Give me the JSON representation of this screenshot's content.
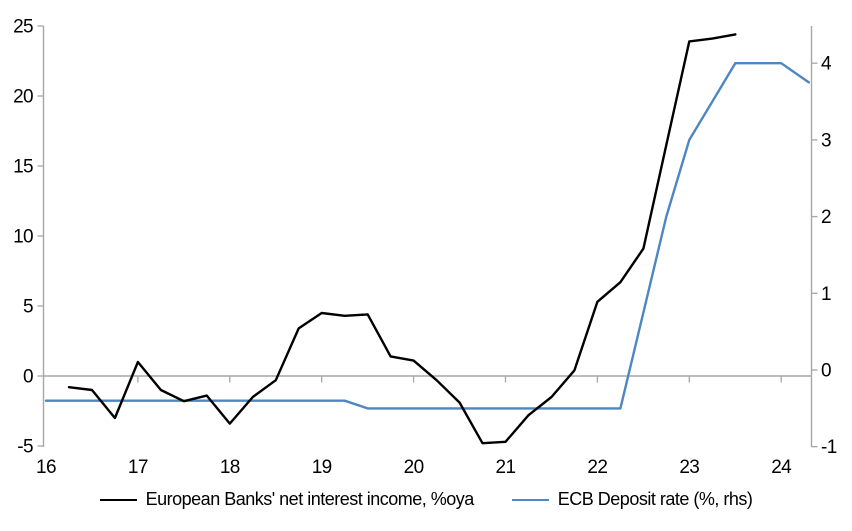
{
  "chart_data": {
    "type": "line",
    "title": "",
    "grid": false,
    "legend_position": "bottom",
    "zero_baseline": true,
    "x_axis": {
      "ticks": [
        16,
        17,
        18,
        19,
        20,
        21,
        22,
        23,
        24
      ],
      "range": [
        16,
        24.33
      ]
    },
    "left_axis": {
      "ticks": [
        25,
        20,
        15,
        10,
        5,
        0,
        -5
      ],
      "range": [
        -5,
        25
      ]
    },
    "right_axis": {
      "ticks": [
        4,
        3,
        2,
        1,
        0,
        -1
      ],
      "range": [
        -1,
        4.45
      ]
    },
    "series": [
      {
        "id": "nii",
        "name": "European Banks' net interest income, %oya",
        "axis": "left",
        "color": "#000000",
        "x": [
          16.25,
          16.5,
          16.75,
          17,
          17.25,
          17.5,
          17.75,
          18,
          18.25,
          18.5,
          18.75,
          19,
          19.25,
          19.5,
          19.75,
          20,
          20.25,
          20.5,
          20.75,
          21,
          21.25,
          21.5,
          21.75,
          22,
          22.25,
          22.5,
          22.75,
          23,
          23.25,
          23.5
        ],
        "values": [
          -0.8,
          -1.0,
          -3.0,
          1.0,
          -1.0,
          -1.8,
          -1.4,
          -3.4,
          -1.5,
          -0.3,
          3.4,
          4.5,
          4.3,
          4.4,
          1.4,
          1.1,
          -0.3,
          -1.9,
          -4.8,
          -4.7,
          -2.8,
          -1.5,
          0.4,
          5.3,
          6.7,
          9.1,
          16.5,
          23.9,
          24.1,
          24.4
        ]
      },
      {
        "id": "ecb-deposit-rate",
        "name": "ECB Deposit rate (%, rhs)",
        "axis": "right",
        "color": "#4e86c0",
        "x": [
          16,
          16.25,
          16.5,
          16.75,
          17,
          17.25,
          17.5,
          17.75,
          18,
          18.25,
          18.5,
          18.75,
          19,
          19.25,
          19.5,
          19.75,
          20,
          20.25,
          20.5,
          20.75,
          21,
          21.25,
          21.5,
          21.75,
          22,
          22.25,
          22.5,
          22.75,
          23,
          23.25,
          23.5,
          23.75,
          24,
          24.3
        ],
        "values": [
          -0.4,
          -0.4,
          -0.4,
          -0.4,
          -0.4,
          -0.4,
          -0.4,
          -0.4,
          -0.4,
          -0.4,
          -0.4,
          -0.4,
          -0.4,
          -0.4,
          -0.5,
          -0.5,
          -0.5,
          -0.5,
          -0.5,
          -0.5,
          -0.5,
          -0.5,
          -0.5,
          -0.5,
          -0.5,
          -0.5,
          0.75,
          2.0,
          3.0,
          3.5,
          4.0,
          4.0,
          4.0,
          3.75
        ]
      }
    ]
  },
  "legend": {
    "items": [
      {
        "label": "European Banks' net interest income, %oya",
        "color": "#000000"
      },
      {
        "label": "ECB Deposit rate (%, rhs)",
        "color": "#4e86c0"
      }
    ]
  },
  "colors": {
    "axis": "#a6a6a6",
    "text": "#000000",
    "background": "#ffffff"
  }
}
